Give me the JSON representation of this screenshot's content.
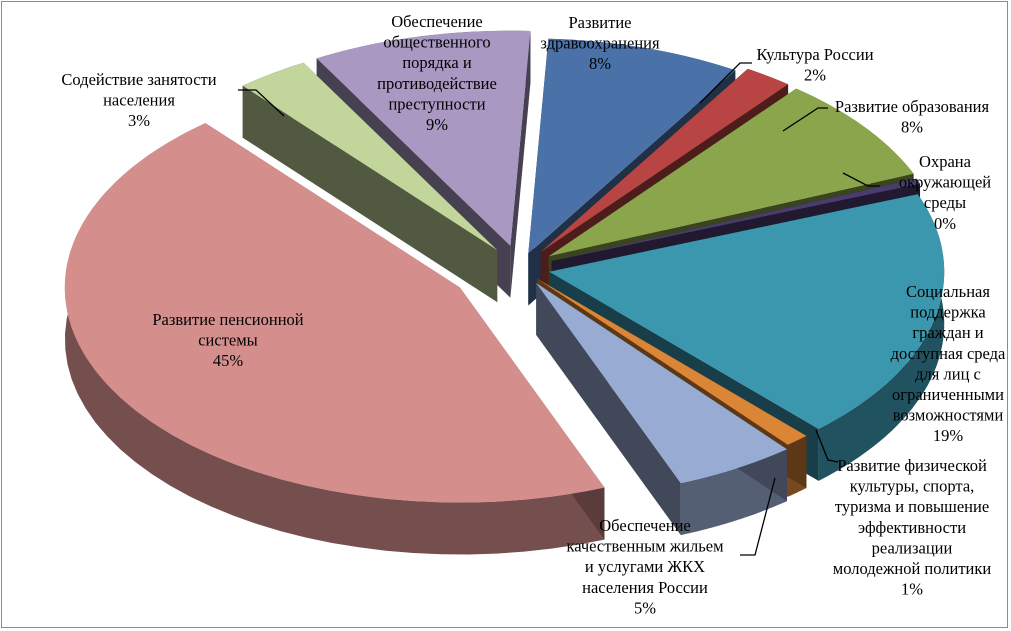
{
  "chart_data": {
    "type": "pie",
    "title": "",
    "slices": [
      {
        "label": "Развитие здравоохранения",
        "label_lines": [
          "Развитие",
          "здравоохранения"
        ],
        "value_text": "8%",
        "value": 8,
        "color": "#4a72a8"
      },
      {
        "label": "Культура России",
        "label_lines": [
          "Культура России"
        ],
        "value_text": "2%",
        "value": 2,
        "color": "#b84543"
      },
      {
        "label": "Развитие образования",
        "label_lines": [
          "Развитие образования"
        ],
        "value_text": "8%",
        "value": 8,
        "color": "#8aa54b"
      },
      {
        "label": "Охрана окружающей среды",
        "label_lines": [
          "Охрана",
          "окружающей",
          "среды"
        ],
        "value_text": "0%",
        "value": 0.4,
        "color": "#4b3c70"
      },
      {
        "label": "Социальная поддержка граждан и доступная среда для лиц с ограниченными возможностями",
        "label_lines": [
          "Социальная",
          "поддержка",
          "граждан и",
          "доступная среда",
          "для лиц с",
          "ограниченными",
          "возможностями"
        ],
        "value_text": "19%",
        "value": 19,
        "color": "#3a97ad"
      },
      {
        "label": "Развитие физической культуры, спорта, туризма и повышение эффективности реализации молодежной политики",
        "label_lines": [
          "Развитие физической",
          "культуры, спорта,",
          "туризма и  повышение",
          "эффективности",
          "реализации",
          "молодежной политики"
        ],
        "value_text": "1%",
        "value": 1,
        "color": "#db8536"
      },
      {
        "label": "Обеспечение качественным жильем и услугами ЖКХ населения России",
        "label_lines": [
          "Обеспечение",
          "качественным жильем",
          "и услугами ЖКХ",
          "населения России"
        ],
        "value_text": "5%",
        "value": 5,
        "color": "#98acd3"
      },
      {
        "label": "Развитие пенсионной системы",
        "label_lines": [
          "Развитие пенсионной",
          "системы"
        ],
        "value_text": "45%",
        "value": 45,
        "color": "#d48f8d"
      },
      {
        "label": "Содействие занятости населения",
        "label_lines": [
          "Содействие занятости",
          "населения"
        ],
        "value_text": "3%",
        "value": 3,
        "color": "#c2d59b"
      },
      {
        "label": "Обеспечение общественного порядка и противодействие преступности",
        "label_lines": [
          "Обеспечение",
          "общественного",
          "порядка и",
          "противодействие",
          "преступности"
        ],
        "value_text": "9%",
        "value": 9,
        "color": "#a898c2"
      }
    ]
  }
}
